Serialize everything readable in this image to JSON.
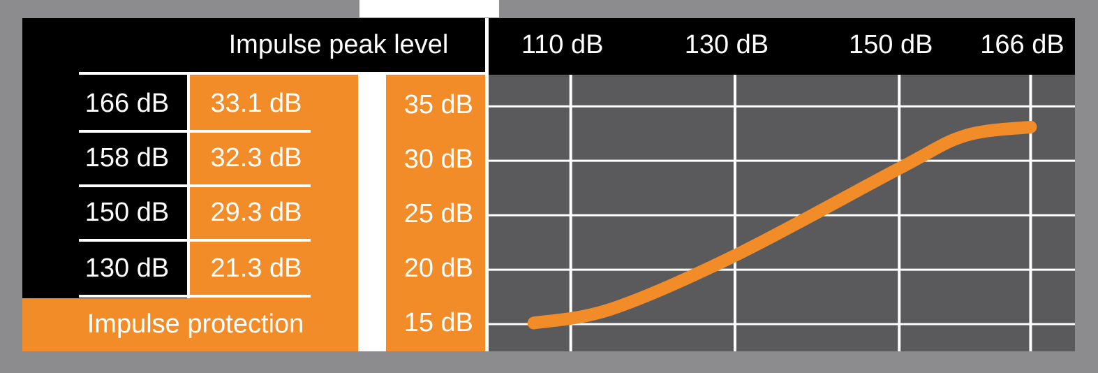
{
  "chart_data": {
    "type": "line",
    "x": [
      105.5,
      115,
      130,
      150,
      158,
      166
    ],
    "values": [
      15.1,
      16.4,
      21.3,
      29.3,
      32.3,
      33.1
    ],
    "color": "#f28c28",
    "xlim": [
      100,
      171.4
    ],
    "xticks": [
      {
        "value": 110,
        "label": "110 dB"
      },
      {
        "value": 130,
        "label": "130 dB"
      },
      {
        "value": 150,
        "label": "150 dB"
      },
      {
        "value": 166,
        "label": "166 dB"
      }
    ],
    "ylim": [
      12.5,
      37.9
    ],
    "yticks": [
      {
        "value": 35,
        "label": "35 dB"
      },
      {
        "value": 30,
        "label": "30 dB"
      },
      {
        "value": 25,
        "label": "25 dB"
      },
      {
        "value": 20,
        "label": "20 dB"
      },
      {
        "value": 15,
        "label": "15 dB"
      }
    ],
    "grid": true,
    "table": {
      "header": "Impulse peak level",
      "rows": [
        [
          "166 dB",
          "33.1 dB"
        ],
        [
          "158 dB",
          "32.3 dB"
        ],
        [
          "150 dB",
          "29.3 dB"
        ],
        [
          "130 dB",
          "21.3 dB"
        ]
      ],
      "footer": "Impulse protection"
    }
  }
}
